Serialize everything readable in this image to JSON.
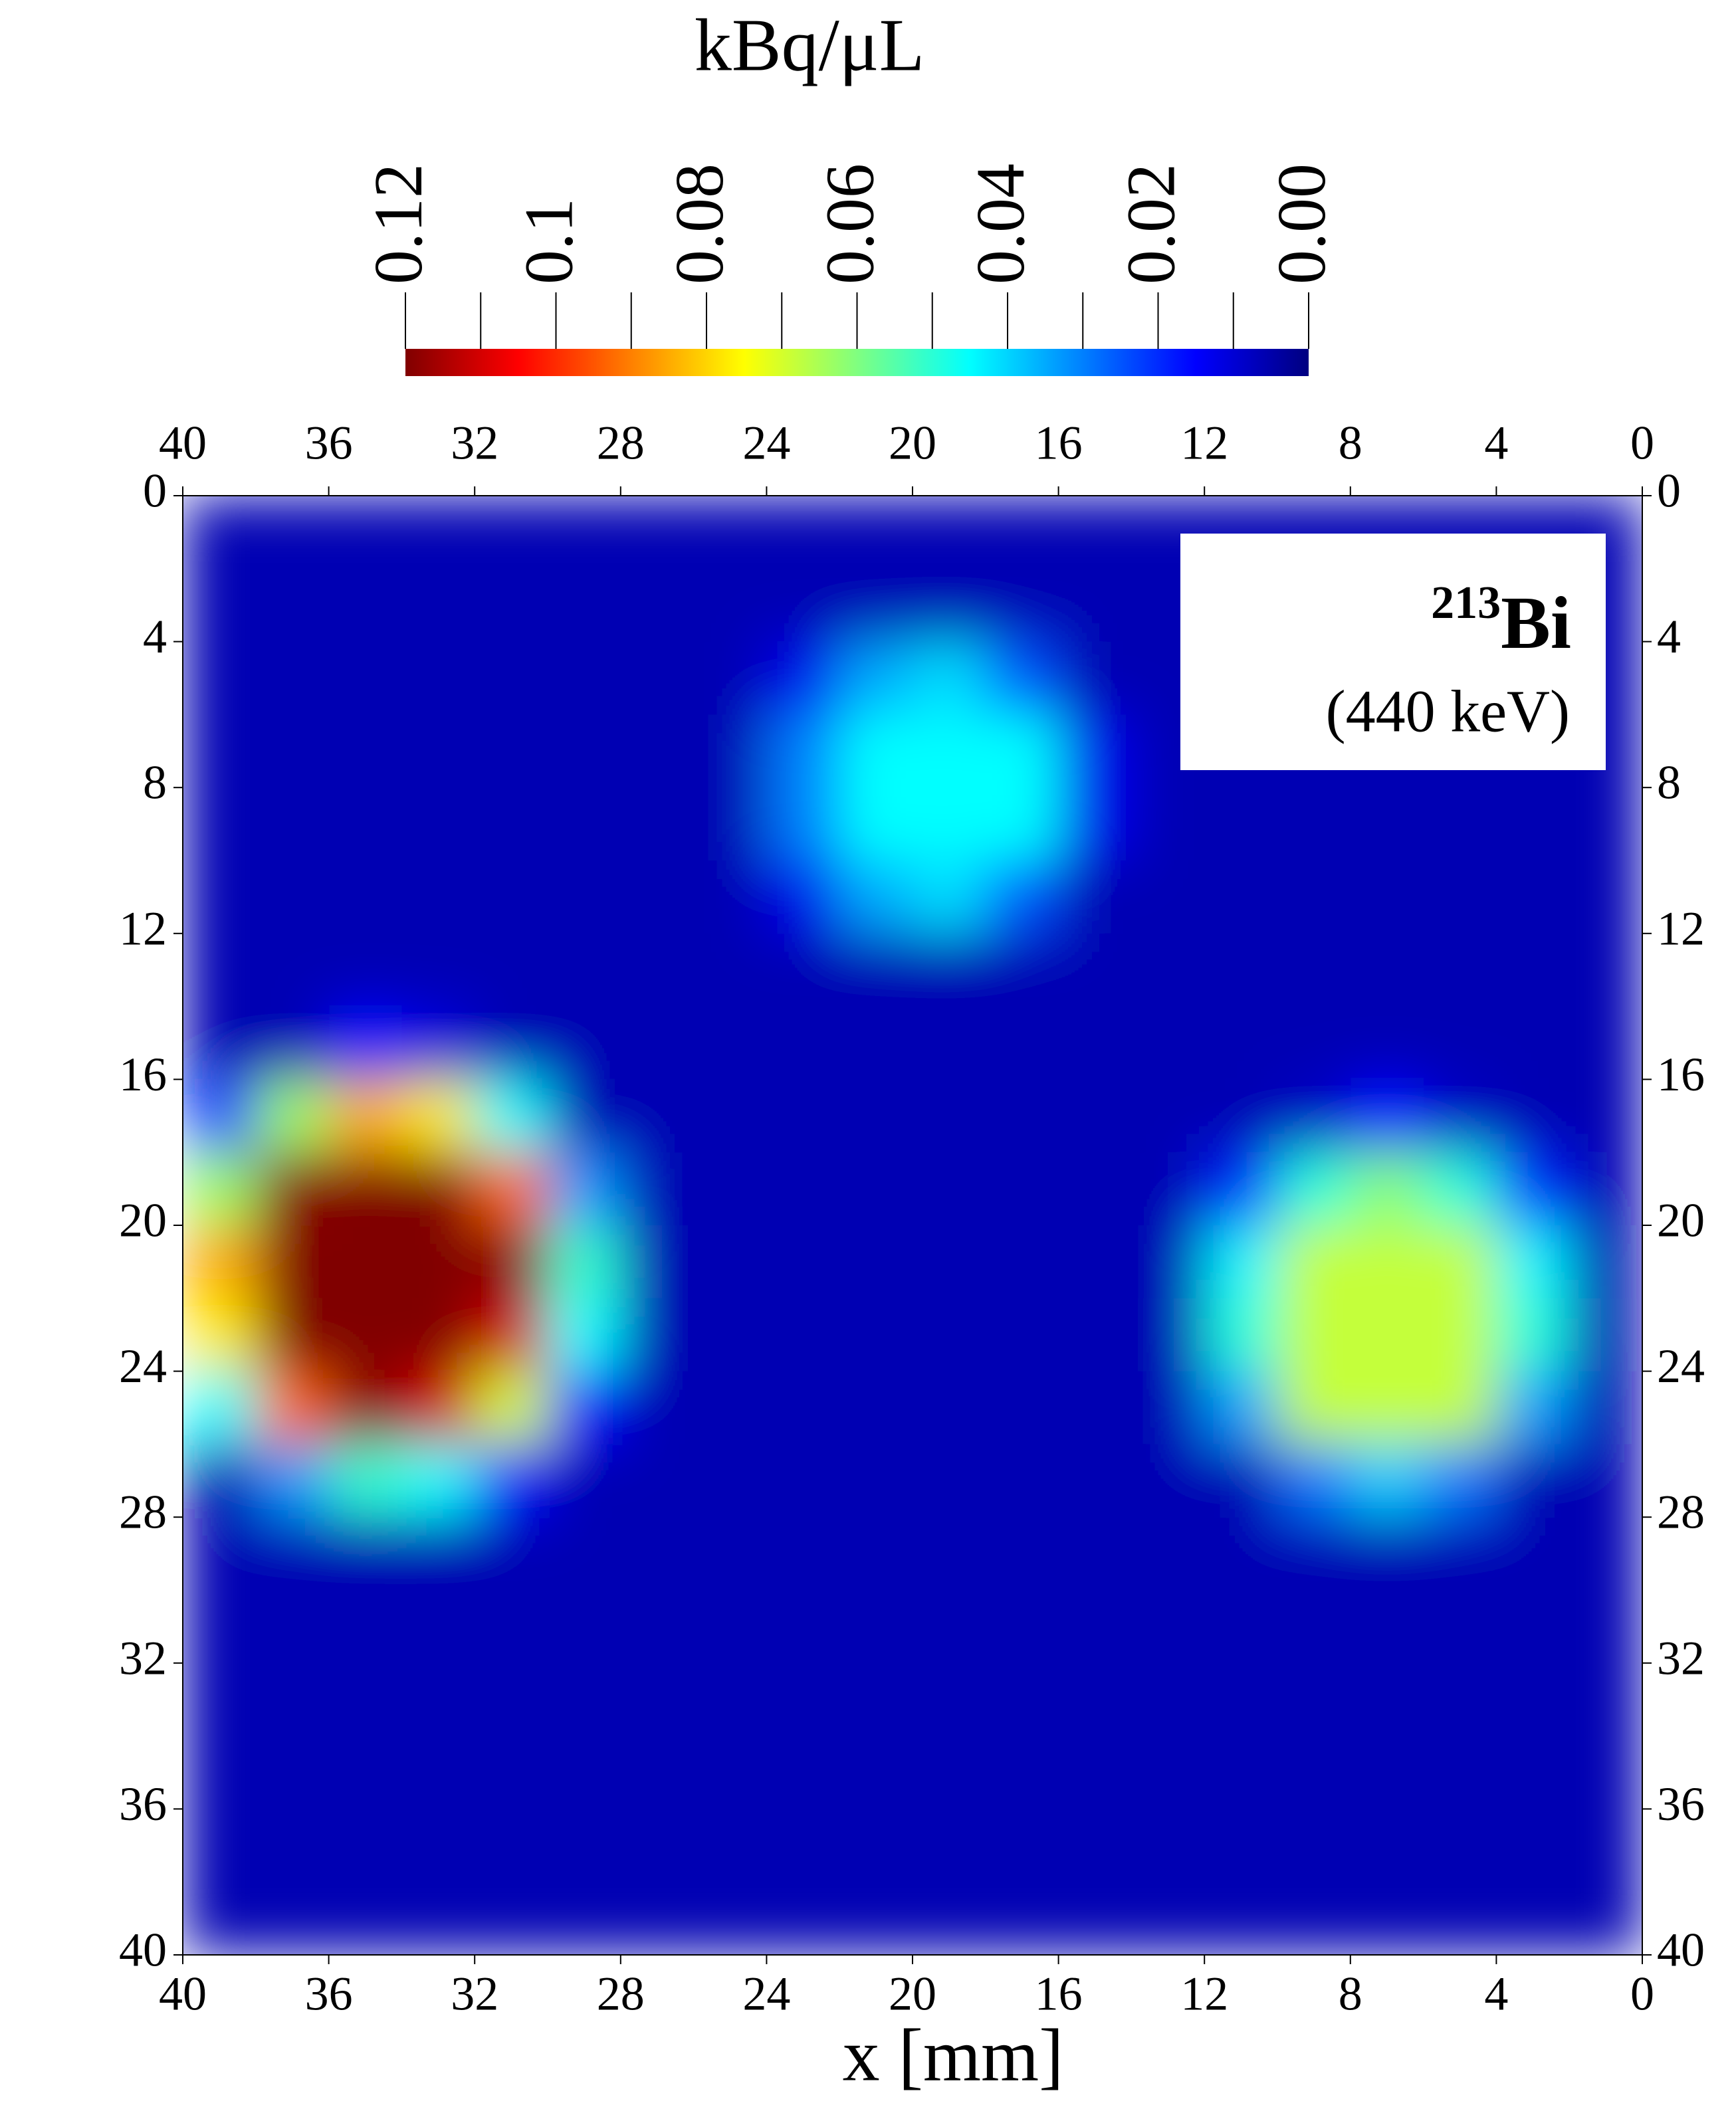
{
  "chart_data": {
    "type": "heatmap",
    "colorbar_title": "kBq/μL",
    "colormap": "jet",
    "clim": [
      0.12,
      0
    ],
    "colorbar_ticks": [
      0.12,
      0.1,
      0.08,
      0.06,
      0.04,
      0.02,
      {
        "value": 0,
        "label": "0.00"
      }
    ],
    "colorbar_minor_ticks": [
      0.11,
      0.09,
      0.07,
      0.05,
      0.03,
      0.01
    ],
    "xlabel": "x [mm]",
    "xlim": [
      40,
      0
    ],
    "ylim": [
      0,
      40
    ],
    "xticks": [
      40,
      36,
      32,
      28,
      24,
      20,
      16,
      12,
      8,
      4,
      0
    ],
    "yticks": [
      0,
      4,
      8,
      12,
      16,
      20,
      24,
      28,
      32,
      36,
      40
    ],
    "annotation": {
      "isotope_mass": "213",
      "isotope": "Bi",
      "energy": "(440 keV)"
    },
    "x": [
      1,
      3,
      5,
      7,
      9,
      11,
      13,
      15,
      17,
      19,
      21,
      23,
      25,
      27,
      29,
      31,
      33,
      35,
      37,
      39
    ],
    "y": [
      1,
      3,
      5,
      7,
      9,
      11,
      13,
      15,
      17,
      19,
      21,
      23,
      25,
      27,
      29,
      31,
      33,
      35,
      37,
      39
    ],
    "z": [
      [
        0.006,
        0.006,
        0.006,
        0.006,
        0.006,
        0.006,
        0.006,
        0.006,
        0.006,
        0.006,
        0.006,
        0.006,
        0.006,
        0.006,
        0.006,
        0.006,
        0.006,
        0.006,
        0.006,
        0.006
      ],
      [
        0.006,
        0.006,
        0.006,
        0.006,
        0.006,
        0.006,
        0.006,
        0.006,
        0.006,
        0.006,
        0.006,
        0.006,
        0.006,
        0.006,
        0.006,
        0.006,
        0.006,
        0.006,
        0.006,
        0.006
      ],
      [
        0.006,
        0.006,
        0.006,
        0.006,
        0.006,
        0.006,
        0.006,
        0.006,
        0.025,
        0.041,
        0.035,
        0.013,
        0.006,
        0.006,
        0.006,
        0.006,
        0.006,
        0.006,
        0.006,
        0.006
      ],
      [
        0.006,
        0.006,
        0.006,
        0.006,
        0.006,
        0.006,
        0.006,
        0.013,
        0.045,
        0.045,
        0.045,
        0.03,
        0.006,
        0.006,
        0.006,
        0.006,
        0.006,
        0.006,
        0.006,
        0.006
      ],
      [
        0.006,
        0.006,
        0.006,
        0.006,
        0.006,
        0.006,
        0.006,
        0.013,
        0.045,
        0.045,
        0.045,
        0.03,
        0.006,
        0.006,
        0.006,
        0.006,
        0.006,
        0.006,
        0.006,
        0.006
      ],
      [
        0.006,
        0.006,
        0.006,
        0.006,
        0.006,
        0.006,
        0.006,
        0.006,
        0.025,
        0.041,
        0.035,
        0.013,
        0.006,
        0.006,
        0.006,
        0.006,
        0.006,
        0.006,
        0.006,
        0.006
      ],
      [
        0.006,
        0.006,
        0.006,
        0.006,
        0.006,
        0.006,
        0.006,
        0.006,
        0.006,
        0.006,
        0.006,
        0.006,
        0.006,
        0.006,
        0.006,
        0.006,
        0.006,
        0.006,
        0.006,
        0.006
      ],
      [
        0.006,
        0.006,
        0.006,
        0.006,
        0.006,
        0.006,
        0.006,
        0.006,
        0.006,
        0.006,
        0.006,
        0.006,
        0.006,
        0.006,
        0.006,
        0.006,
        0.011,
        0.016,
        0.006,
        0.006
      ],
      [
        0.006,
        0.006,
        0.008,
        0.016,
        0.008,
        0.006,
        0.006,
        0.006,
        0.006,
        0.006,
        0.006,
        0.006,
        0.006,
        0.006,
        0.006,
        0.045,
        0.077,
        0.085,
        0.063,
        0.022
      ],
      [
        0.006,
        0.02,
        0.049,
        0.061,
        0.049,
        0.02,
        0.006,
        0.006,
        0.006,
        0.006,
        0.006,
        0.006,
        0.006,
        0.006,
        0.033,
        0.093,
        0.12,
        0.12,
        0.119,
        0.063
      ],
      [
        0.006,
        0.044,
        0.068,
        0.068,
        0.068,
        0.044,
        0.006,
        0.006,
        0.006,
        0.006,
        0.006,
        0.006,
        0.006,
        0.006,
        0.051,
        0.119,
        0.12,
        0.12,
        0.12,
        0.085
      ],
      [
        0.006,
        0.049,
        0.068,
        0.068,
        0.068,
        0.049,
        0.006,
        0.006,
        0.006,
        0.006,
        0.006,
        0.006,
        0.006,
        0.006,
        0.045,
        0.11,
        0.12,
        0.12,
        0.12,
        0.077
      ],
      [
        0.006,
        0.034,
        0.068,
        0.068,
        0.068,
        0.034,
        0.006,
        0.006,
        0.006,
        0.006,
        0.006,
        0.006,
        0.006,
        0.006,
        0.016,
        0.07,
        0.11,
        0.119,
        0.093,
        0.045
      ],
      [
        0.006,
        0.006,
        0.029,
        0.039,
        0.029,
        0.006,
        0.006,
        0.006,
        0.006,
        0.006,
        0.006,
        0.006,
        0.006,
        0.006,
        0.006,
        0.017,
        0.045,
        0.051,
        0.033,
        0.006
      ],
      [
        0.006,
        0.006,
        0.006,
        0.006,
        0.006,
        0.006,
        0.006,
        0.006,
        0.006,
        0.006,
        0.006,
        0.006,
        0.006,
        0.006,
        0.006,
        0.006,
        0.006,
        0.006,
        0.006,
        0.006
      ],
      [
        0.006,
        0.006,
        0.006,
        0.006,
        0.006,
        0.006,
        0.006,
        0.006,
        0.006,
        0.006,
        0.006,
        0.006,
        0.006,
        0.006,
        0.006,
        0.006,
        0.006,
        0.006,
        0.006,
        0.006
      ],
      [
        0.006,
        0.006,
        0.006,
        0.006,
        0.006,
        0.006,
        0.006,
        0.006,
        0.006,
        0.006,
        0.006,
        0.006,
        0.006,
        0.006,
        0.006,
        0.006,
        0.006,
        0.006,
        0.006,
        0.006
      ],
      [
        0.006,
        0.006,
        0.006,
        0.006,
        0.006,
        0.006,
        0.006,
        0.006,
        0.006,
        0.006,
        0.006,
        0.006,
        0.006,
        0.006,
        0.006,
        0.006,
        0.006,
        0.006,
        0.006,
        0.006
      ],
      [
        0.006,
        0.006,
        0.006,
        0.006,
        0.006,
        0.006,
        0.006,
        0.006,
        0.006,
        0.006,
        0.006,
        0.006,
        0.006,
        0.006,
        0.006,
        0.006,
        0.006,
        0.006,
        0.006,
        0.006
      ],
      [
        0.006,
        0.006,
        0.006,
        0.006,
        0.006,
        0.006,
        0.006,
        0.006,
        0.006,
        0.006,
        0.006,
        0.006,
        0.006,
        0.006,
        0.006,
        0.006,
        0.006,
        0.006,
        0.006,
        0.006
      ]
    ]
  }
}
